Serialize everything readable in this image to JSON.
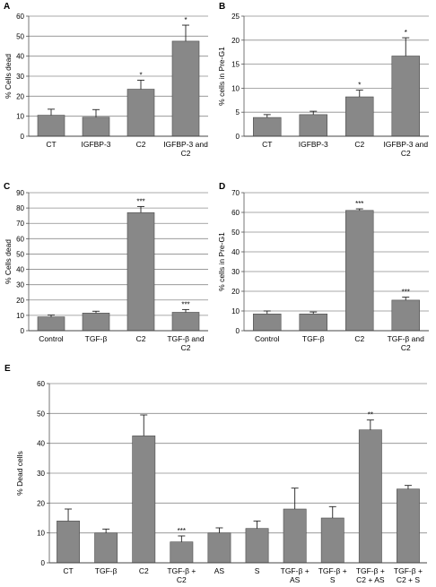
{
  "chart_data": [
    {
      "panel": "A",
      "type": "bar",
      "ylabel": "% Cells dead",
      "ylim": [
        0,
        60
      ],
      "yticks": [
        0,
        10,
        20,
        30,
        40,
        50,
        60
      ],
      "grid": true,
      "categories": [
        [
          "CT"
        ],
        [
          "IGFBP-3"
        ],
        [
          "C2"
        ],
        [
          "IGFBP-3 and",
          "C2"
        ]
      ],
      "values": [
        10.5,
        9.5,
        23.5,
        47.5
      ],
      "errors": [
        3.0,
        3.8,
        4.5,
        8.0
      ],
      "annotations": [
        "",
        "",
        "*",
        "*"
      ]
    },
    {
      "panel": "B",
      "type": "bar",
      "ylabel": "% cells in Pre-G1",
      "ylim": [
        0,
        25
      ],
      "yticks": [
        0,
        5,
        10,
        15,
        20,
        25
      ],
      "grid": true,
      "categories": [
        [
          "CT"
        ],
        [
          "IGFBP-3"
        ],
        [
          "C2"
        ],
        [
          "IGFBP-3 and",
          "C2"
        ]
      ],
      "values": [
        3.9,
        4.5,
        8.2,
        16.7
      ],
      "errors": [
        0.6,
        0.7,
        1.4,
        3.8
      ],
      "annotations": [
        "",
        "",
        "*",
        "*"
      ]
    },
    {
      "panel": "C",
      "type": "bar",
      "ylabel": "% Cells dead",
      "ylim": [
        0,
        90
      ],
      "yticks": [
        0,
        10,
        20,
        30,
        40,
        50,
        60,
        70,
        80,
        90
      ],
      "grid": true,
      "categories": [
        [
          "Control"
        ],
        [
          "TGF-β"
        ],
        [
          "C2"
        ],
        [
          "TGF-β and",
          "C2"
        ]
      ],
      "values": [
        9.0,
        11.5,
        77.0,
        12.0
      ],
      "errors": [
        1.2,
        1.2,
        4.0,
        1.8
      ],
      "annotations": [
        "",
        "",
        "***",
        "***"
      ]
    },
    {
      "panel": "D",
      "type": "bar",
      "ylabel": "% cells in Pre-G1",
      "ylim": [
        0,
        70
      ],
      "yticks": [
        0,
        10,
        20,
        30,
        40,
        50,
        60,
        70
      ],
      "grid": true,
      "categories": [
        [
          "Control"
        ],
        [
          "TGF-β"
        ],
        [
          "C2"
        ],
        [
          "TGF-β and",
          "C2"
        ]
      ],
      "values": [
        8.5,
        8.5,
        61.0,
        15.5
      ],
      "errors": [
        1.5,
        1.0,
        0.8,
        1.5
      ],
      "annotations": [
        "",
        "",
        "***",
        "***"
      ]
    },
    {
      "panel": "E",
      "type": "bar",
      "ylabel": "% Dead cells",
      "ylim": [
        0,
        60
      ],
      "yticks": [
        0,
        10,
        20,
        30,
        40,
        50,
        60
      ],
      "grid": true,
      "categories": [
        [
          "CT"
        ],
        [
          "TGF-β"
        ],
        [
          "C2"
        ],
        [
          "TGF-β +",
          "C2"
        ],
        [
          "AS"
        ],
        [
          "S"
        ],
        [
          "TGF-β +",
          "AS"
        ],
        [
          "TGF-β +",
          "S"
        ],
        [
          "TGF-β +",
          "C2 + AS"
        ],
        [
          "TGF-β +",
          "C2 + S"
        ]
      ],
      "values": [
        14.0,
        10.0,
        42.5,
        7.0,
        10.0,
        11.5,
        18.0,
        15.0,
        44.5,
        24.7
      ],
      "errors": [
        4.0,
        1.3,
        7.0,
        2.0,
        1.7,
        2.5,
        7.0,
        3.8,
        3.3,
        1.2
      ],
      "annotations": [
        "",
        "",
        "",
        "***",
        "",
        "",
        "",
        "",
        "**",
        ""
      ]
    }
  ]
}
